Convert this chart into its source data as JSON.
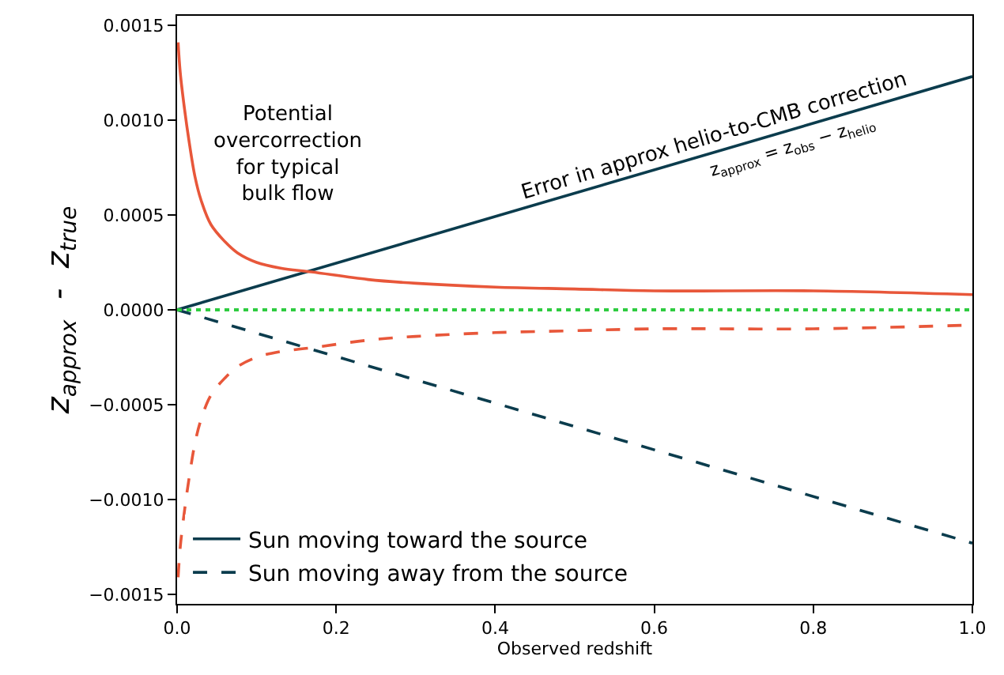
{
  "chart_data": {
    "type": "line",
    "xlabel": "Observed redshift",
    "ylabel": "z$_{approx}$  -  z$_{true}$",
    "xlim": [
      0,
      1
    ],
    "ylim": [
      -0.00155,
      0.00155
    ],
    "xticks": [
      {
        "value": 0,
        "label": "0.0"
      },
      {
        "value": 0.2,
        "label": "0.2"
      },
      {
        "value": 0.4,
        "label": "0.4"
      },
      {
        "value": 0.6,
        "label": "0.6"
      },
      {
        "value": 0.8,
        "label": "0.8"
      },
      {
        "value": 1,
        "label": "1.0"
      }
    ],
    "yticks": [
      {
        "value": -0.0015,
        "label": "−0.0015"
      },
      {
        "value": -0.001,
        "label": "−0.0010"
      },
      {
        "value": -0.0005,
        "label": "−0.0005"
      },
      {
        "value": 0,
        "label": "0.0000"
      },
      {
        "value": 0.0005,
        "label": "0.0005"
      },
      {
        "value": 0.001,
        "label": "0.0010"
      },
      {
        "value": 0.0015,
        "label": "0.0015"
      }
    ],
    "legend": "bottom left",
    "marker": "none",
    "series": [
      {
        "name": "Sun moving toward the source",
        "color": "#0b3c4d",
        "line_style": "solid",
        "x": [
          0,
          1
        ],
        "values": [
          0,
          0.00123
        ]
      },
      {
        "name": "Sun moving away from the source",
        "color": "#0b3c4d",
        "line_style": "dashed",
        "x": [
          0,
          1
        ],
        "values": [
          0,
          -0.00123
        ]
      },
      {
        "color": "#e8573a",
        "line_style": "solid",
        "x": [
          0.0013,
          0.004,
          0.0093,
          0.015,
          0.0226,
          0.03,
          0.0425,
          0.06,
          0.076,
          0.1,
          0.13,
          0.169,
          0.24,
          0.3,
          0.4,
          0.5,
          0.6,
          0.8,
          1
        ],
        "values": [
          0.00141,
          0.00125,
          0.00106,
          0.00089,
          0.0007,
          0.00058,
          0.00045,
          0.00036,
          0.0003,
          0.00025,
          0.00022,
          0.0002,
          0.00016,
          0.00014,
          0.00012,
          0.00011,
          0.0001,
          0.0001,
          8e-05
        ]
      },
      {
        "color": "#e8573a",
        "line_style": "dashed",
        "x": [
          0.0013,
          0.004,
          0.0093,
          0.015,
          0.0226,
          0.03,
          0.0425,
          0.06,
          0.076,
          0.1,
          0.13,
          0.169,
          0.24,
          0.3,
          0.4,
          0.5,
          0.6,
          0.8,
          1
        ],
        "values": [
          -0.00141,
          -0.00125,
          -0.00106,
          -0.00089,
          -0.0007,
          -0.00058,
          -0.00045,
          -0.00036,
          -0.0003,
          -0.00025,
          -0.00022,
          -0.0002,
          -0.00016,
          -0.00014,
          -0.00012,
          -0.00011,
          -0.0001,
          -0.0001,
          -8e-05
        ]
      }
    ],
    "ref_lines": [
      {
        "axis": "y",
        "value": 0,
        "color": "#2ecc40",
        "line_style": "dotted"
      }
    ],
    "annotations": [
      "Potential\novercorrection\nfor typical\nbulk flow",
      "Error in approx helio-to-CMB correction",
      "z$_{approx}$ = z$_{obs}$ − z$_{helio}$"
    ]
  }
}
